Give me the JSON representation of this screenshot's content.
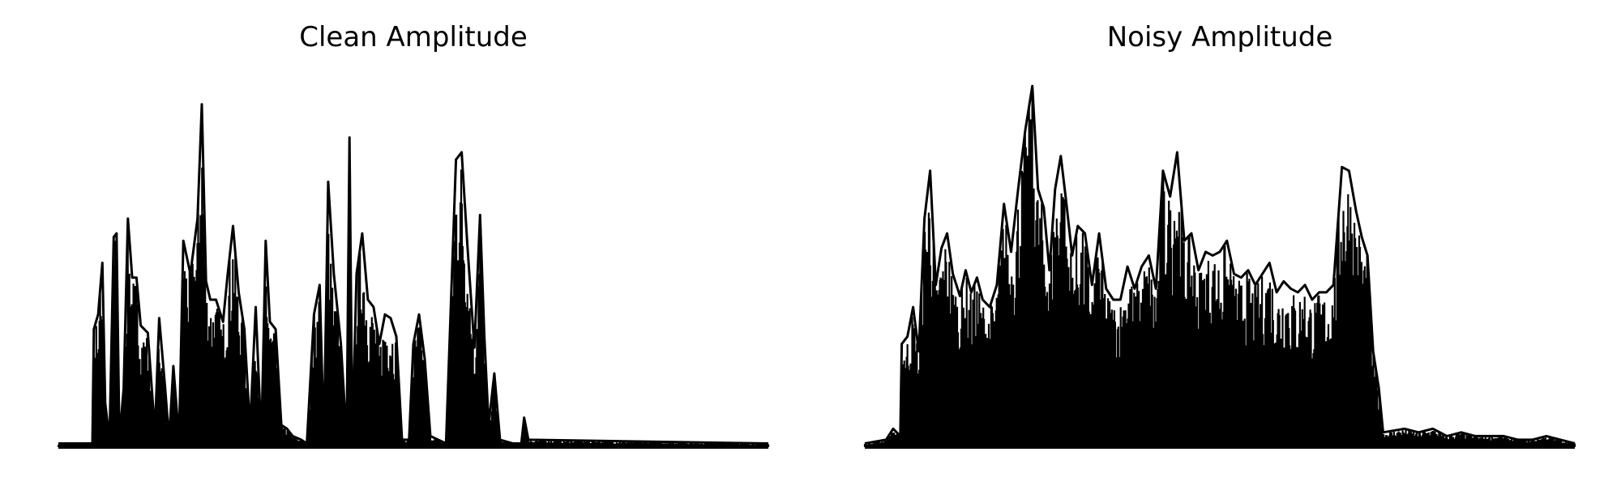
{
  "chart_data": [
    {
      "type": "area",
      "title": "Clean Amplitude",
      "xlabel": "",
      "ylabel": "",
      "axes": "off",
      "grid": false,
      "color": "#000000",
      "ylim": [
        0,
        1.0
      ],
      "envelope": [
        [
          0.0,
          0.01
        ],
        [
          0.048,
          0.01
        ],
        [
          0.05,
          0.32
        ],
        [
          0.056,
          0.36
        ],
        [
          0.062,
          0.5
        ],
        [
          0.066,
          0.12
        ],
        [
          0.072,
          0.02
        ],
        [
          0.078,
          0.57
        ],
        [
          0.082,
          0.58
        ],
        [
          0.086,
          0.02
        ],
        [
          0.092,
          0.16
        ],
        [
          0.098,
          0.62
        ],
        [
          0.104,
          0.46
        ],
        [
          0.11,
          0.46
        ],
        [
          0.116,
          0.33
        ],
        [
          0.126,
          0.31
        ],
        [
          0.136,
          0.04
        ],
        [
          0.142,
          0.35
        ],
        [
          0.15,
          0.17
        ],
        [
          0.156,
          0.02
        ],
        [
          0.162,
          0.22
        ],
        [
          0.17,
          0.02
        ],
        [
          0.176,
          0.56
        ],
        [
          0.186,
          0.47
        ],
        [
          0.196,
          0.62
        ],
        [
          0.202,
          0.93
        ],
        [
          0.208,
          0.45
        ],
        [
          0.214,
          0.4
        ],
        [
          0.222,
          0.4
        ],
        [
          0.232,
          0.34
        ],
        [
          0.238,
          0.46
        ],
        [
          0.246,
          0.6
        ],
        [
          0.254,
          0.42
        ],
        [
          0.262,
          0.32
        ],
        [
          0.27,
          0.05
        ],
        [
          0.278,
          0.38
        ],
        [
          0.286,
          0.02
        ],
        [
          0.292,
          0.56
        ],
        [
          0.298,
          0.34
        ],
        [
          0.306,
          0.32
        ],
        [
          0.314,
          0.06
        ],
        [
          0.322,
          0.05
        ],
        [
          0.33,
          0.03
        ],
        [
          0.342,
          0.02
        ],
        [
          0.35,
          0.01
        ],
        [
          0.36,
          0.36
        ],
        [
          0.368,
          0.44
        ],
        [
          0.374,
          0.02
        ],
        [
          0.38,
          0.72
        ],
        [
          0.388,
          0.47
        ],
        [
          0.398,
          0.28
        ],
        [
          0.406,
          0.02
        ],
        [
          0.41,
          0.84
        ],
        [
          0.414,
          0.02
        ],
        [
          0.42,
          0.47
        ],
        [
          0.428,
          0.58
        ],
        [
          0.436,
          0.4
        ],
        [
          0.444,
          0.38
        ],
        [
          0.452,
          0.28
        ],
        [
          0.46,
          0.36
        ],
        [
          0.468,
          0.35
        ],
        [
          0.476,
          0.3
        ],
        [
          0.484,
          0.02
        ],
        [
          0.494,
          0.02
        ],
        [
          0.5,
          0.28
        ],
        [
          0.508,
          0.36
        ],
        [
          0.516,
          0.24
        ],
        [
          0.524,
          0.03
        ],
        [
          0.546,
          0.01
        ],
        [
          0.56,
          0.78
        ],
        [
          0.568,
          0.8
        ],
        [
          0.576,
          0.55
        ],
        [
          0.586,
          0.27
        ],
        [
          0.594,
          0.63
        ],
        [
          0.6,
          0.3
        ],
        [
          0.606,
          0.06
        ],
        [
          0.614,
          0.2
        ],
        [
          0.622,
          0.02
        ],
        [
          0.64,
          0.01
        ],
        [
          0.652,
          0.01
        ],
        [
          0.656,
          0.08
        ],
        [
          0.662,
          0.02
        ],
        [
          1.0,
          0.01
        ]
      ]
    },
    {
      "type": "area",
      "title": "Noisy Amplitude",
      "xlabel": "",
      "ylabel": "",
      "axes": "off",
      "grid": false,
      "color": "#000000",
      "ylim": [
        0,
        1.0
      ],
      "envelope": [
        [
          0.0,
          0.01
        ],
        [
          0.03,
          0.02
        ],
        [
          0.04,
          0.05
        ],
        [
          0.05,
          0.03
        ],
        [
          0.052,
          0.28
        ],
        [
          0.06,
          0.3
        ],
        [
          0.068,
          0.38
        ],
        [
          0.076,
          0.26
        ],
        [
          0.084,
          0.62
        ],
        [
          0.092,
          0.75
        ],
        [
          0.1,
          0.44
        ],
        [
          0.108,
          0.54
        ],
        [
          0.116,
          0.58
        ],
        [
          0.124,
          0.47
        ],
        [
          0.134,
          0.41
        ],
        [
          0.142,
          0.48
        ],
        [
          0.15,
          0.42
        ],
        [
          0.158,
          0.46
        ],
        [
          0.166,
          0.4
        ],
        [
          0.176,
          0.38
        ],
        [
          0.186,
          0.44
        ],
        [
          0.196,
          0.66
        ],
        [
          0.206,
          0.53
        ],
        [
          0.216,
          0.7
        ],
        [
          0.226,
          0.86
        ],
        [
          0.236,
          0.98
        ],
        [
          0.244,
          0.7
        ],
        [
          0.252,
          0.65
        ],
        [
          0.26,
          0.48
        ],
        [
          0.268,
          0.7
        ],
        [
          0.276,
          0.79
        ],
        [
          0.284,
          0.66
        ],
        [
          0.292,
          0.52
        ],
        [
          0.3,
          0.6
        ],
        [
          0.31,
          0.58
        ],
        [
          0.32,
          0.44
        ],
        [
          0.33,
          0.58
        ],
        [
          0.34,
          0.43
        ],
        [
          0.35,
          0.4
        ],
        [
          0.36,
          0.4
        ],
        [
          0.37,
          0.49
        ],
        [
          0.38,
          0.43
        ],
        [
          0.39,
          0.49
        ],
        [
          0.4,
          0.52
        ],
        [
          0.41,
          0.43
        ],
        [
          0.42,
          0.75
        ],
        [
          0.43,
          0.68
        ],
        [
          0.44,
          0.8
        ],
        [
          0.45,
          0.56
        ],
        [
          0.46,
          0.58
        ],
        [
          0.47,
          0.48
        ],
        [
          0.48,
          0.53
        ],
        [
          0.49,
          0.52
        ],
        [
          0.5,
          0.53
        ],
        [
          0.51,
          0.56
        ],
        [
          0.52,
          0.47
        ],
        [
          0.53,
          0.46
        ],
        [
          0.54,
          0.48
        ],
        [
          0.55,
          0.44
        ],
        [
          0.56,
          0.47
        ],
        [
          0.57,
          0.5
        ],
        [
          0.58,
          0.42
        ],
        [
          0.59,
          0.45
        ],
        [
          0.6,
          0.43
        ],
        [
          0.61,
          0.42
        ],
        [
          0.62,
          0.44
        ],
        [
          0.63,
          0.4
        ],
        [
          0.64,
          0.42
        ],
        [
          0.65,
          0.42
        ],
        [
          0.66,
          0.44
        ],
        [
          0.672,
          0.76
        ],
        [
          0.682,
          0.75
        ],
        [
          0.692,
          0.64
        ],
        [
          0.7,
          0.57
        ],
        [
          0.708,
          0.52
        ],
        [
          0.716,
          0.26
        ],
        [
          0.724,
          0.16
        ],
        [
          0.73,
          0.04
        ],
        [
          0.76,
          0.05
        ],
        [
          0.78,
          0.04
        ],
        [
          0.8,
          0.05
        ],
        [
          0.82,
          0.03
        ],
        [
          0.84,
          0.04
        ],
        [
          0.86,
          0.03
        ],
        [
          0.88,
          0.03
        ],
        [
          0.9,
          0.03
        ],
        [
          0.92,
          0.02
        ],
        [
          0.94,
          0.02
        ],
        [
          0.96,
          0.03
        ],
        [
          0.98,
          0.02
        ],
        [
          1.0,
          0.01
        ]
      ]
    }
  ]
}
